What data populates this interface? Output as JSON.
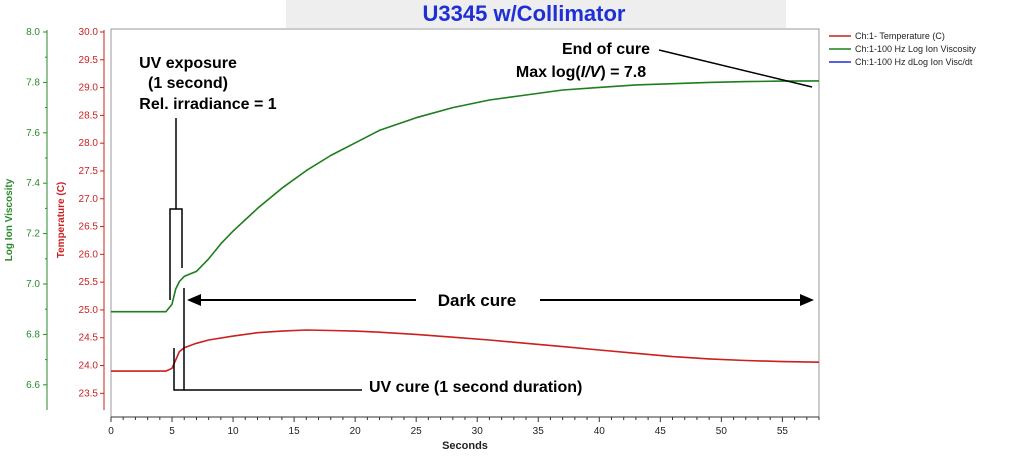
{
  "chart_data": {
    "type": "line",
    "title": "U3345 w/Collimator",
    "xlabel": "Seconds",
    "ylabel_left": "Log Ion Viscosity",
    "ylabel_right_inner": "Temperature (C)",
    "xlim": [
      0,
      58
    ],
    "x_ticks": [
      0,
      5,
      10,
      15,
      20,
      25,
      30,
      35,
      40,
      45,
      50,
      55
    ],
    "viscosity_axis": {
      "ylim": [
        6.5,
        8.0
      ],
      "ticks": [
        "6.6",
        "6.8",
        "7.0",
        "7.2",
        "7.4",
        "7.6",
        "7.8",
        "8.0"
      ]
    },
    "temperature_axis": {
      "ylim": [
        23.2,
        30.0
      ],
      "ticks": [
        "23.5",
        "24.0",
        "24.5",
        "25.0",
        "25.5",
        "26.0",
        "26.5",
        "27.0",
        "27.5",
        "28.0",
        "28.5",
        "29.0",
        "29.5",
        "30.0"
      ]
    },
    "grid": false,
    "legend_position": "top-right",
    "series": [
      {
        "name": "Ch:1- Temperature (C)",
        "axis": "temperature",
        "color": "#cc1f1f",
        "points": [
          [
            0,
            23.9
          ],
          [
            2,
            23.9
          ],
          [
            4.5,
            23.9
          ],
          [
            5,
            23.95
          ],
          [
            5.3,
            24.1
          ],
          [
            5.6,
            24.25
          ],
          [
            6,
            24.32
          ],
          [
            7,
            24.4
          ],
          [
            8,
            24.46
          ],
          [
            10,
            24.53
          ],
          [
            12,
            24.59
          ],
          [
            14,
            24.62
          ],
          [
            16,
            24.64
          ],
          [
            18,
            24.63
          ],
          [
            20,
            24.62
          ],
          [
            22,
            24.6
          ],
          [
            25,
            24.56
          ],
          [
            28,
            24.51
          ],
          [
            31,
            24.46
          ],
          [
            34,
            24.4
          ],
          [
            37,
            24.34
          ],
          [
            40,
            24.28
          ],
          [
            43,
            24.22
          ],
          [
            46,
            24.16
          ],
          [
            49,
            24.12
          ],
          [
            52,
            24.09
          ],
          [
            55,
            24.07
          ],
          [
            58,
            24.06
          ]
        ]
      },
      {
        "name": "Ch:1-100 Hz Log Ion Viscosity",
        "axis": "viscosity",
        "color": "#1e7d1e",
        "points": [
          [
            0,
            6.89
          ],
          [
            2,
            6.89
          ],
          [
            4.5,
            6.89
          ],
          [
            5,
            6.92
          ],
          [
            5.3,
            6.98
          ],
          [
            5.6,
            7.01
          ],
          [
            6,
            7.03
          ],
          [
            7,
            7.05
          ],
          [
            8,
            7.1
          ],
          [
            9,
            7.16
          ],
          [
            10,
            7.21
          ],
          [
            12,
            7.3
          ],
          [
            14,
            7.38
          ],
          [
            16,
            7.45
          ],
          [
            18,
            7.51
          ],
          [
            20,
            7.56
          ],
          [
            22,
            7.61
          ],
          [
            25,
            7.66
          ],
          [
            28,
            7.7
          ],
          [
            31,
            7.73
          ],
          [
            34,
            7.75
          ],
          [
            37,
            7.77
          ],
          [
            40,
            7.78
          ],
          [
            43,
            7.79
          ],
          [
            46,
            7.795
          ],
          [
            49,
            7.8
          ],
          [
            52,
            7.803
          ],
          [
            55,
            7.805
          ],
          [
            58,
            7.806
          ]
        ]
      },
      {
        "name": "Ch:1-100 Hz dLog Ion Visc/dt",
        "axis": "viscosity",
        "color": "#1f2fd6",
        "points": []
      }
    ],
    "annotations": {
      "uv_exposure": [
        "UV exposure",
        "(1 second)",
        "Rel. irradiance = 1"
      ],
      "end_of_cure": "End of cure",
      "max_label_prefix": "Max log(",
      "max_label_italic": "I/V",
      "max_label_suffix": ") = 7.8",
      "dark_cure": "Dark cure",
      "uv_cure": "UV cure (1 second duration)"
    },
    "colors": {
      "title": "#1f2fd6",
      "viscosity_axis": "#2a8a2a",
      "temperature_axis": "#cc1f1f",
      "header_band": "#eeeeee"
    }
  }
}
